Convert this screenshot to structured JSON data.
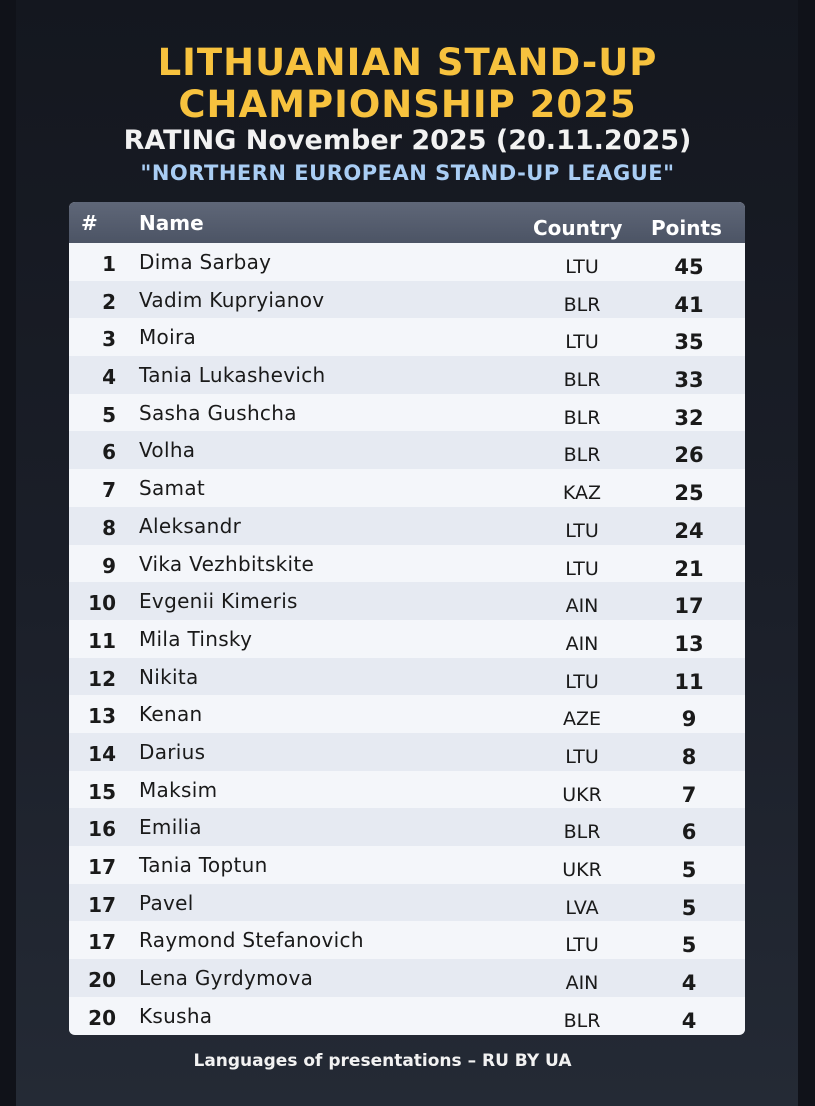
{
  "header": {
    "title_line1": "LITHUANIAN STAND-UP",
    "title_line2": "CHAMPIONSHIP 2025",
    "rating": "RATING November 2025 (20.11.2025)",
    "league": "\"NORTHERN EUROPEAN STAND-UP LEAGUE\""
  },
  "table": {
    "columns": {
      "rank": "#",
      "name": "Name",
      "country": "Country",
      "points": "Points"
    },
    "rows": [
      {
        "rank": "1",
        "name": "Dima Sarbay",
        "country": "LTU",
        "points": "45"
      },
      {
        "rank": "2",
        "name": "Vadim Kupryianov",
        "country": "BLR",
        "points": "41"
      },
      {
        "rank": "3",
        "name": "Moira",
        "country": "LTU",
        "points": "35"
      },
      {
        "rank": "4",
        "name": "Tania Lukashevich",
        "country": "BLR",
        "points": "33"
      },
      {
        "rank": "5",
        "name": "Sasha Gushcha",
        "country": "BLR",
        "points": "32"
      },
      {
        "rank": "6",
        "name": "Volha",
        "country": "BLR",
        "points": "26"
      },
      {
        "rank": "7",
        "name": "Samat",
        "country": "KAZ",
        "points": "25"
      },
      {
        "rank": "8",
        "name": "Aleksandr",
        "country": "LTU",
        "points": "24"
      },
      {
        "rank": "9",
        "name": "Vika Vezhbitskite",
        "country": "LTU",
        "points": "21"
      },
      {
        "rank": "10",
        "name": "Evgenii Kimeris",
        "country": "AIN",
        "points": "17"
      },
      {
        "rank": "11",
        "name": "Mila Tinsky",
        "country": "AIN",
        "points": "13"
      },
      {
        "rank": "12",
        "name": "Nikita",
        "country": "LTU",
        "points": "11"
      },
      {
        "rank": "13",
        "name": "Kenan",
        "country": "AZE",
        "points": "9"
      },
      {
        "rank": "14",
        "name": "Darius",
        "country": "LTU",
        "points": "8"
      },
      {
        "rank": "15",
        "name": "Maksim",
        "country": "UKR",
        "points": "7"
      },
      {
        "rank": "16",
        "name": "Emilia",
        "country": "BLR",
        "points": "6"
      },
      {
        "rank": "17",
        "name": "Tania Toptun",
        "country": "UKR",
        "points": "5"
      },
      {
        "rank": "17",
        "name": "Pavel",
        "country": "LVA",
        "points": "5"
      },
      {
        "rank": "17",
        "name": "Raymond Stefanovich",
        "country": "LTU",
        "points": "5"
      },
      {
        "rank": "20",
        "name": "Lena Gyrdymova",
        "country": "AIN",
        "points": "4"
      },
      {
        "rank": "20",
        "name": "Ksusha",
        "country": "BLR",
        "points": "4"
      }
    ]
  },
  "footer": {
    "languages": "Languages of presentations – RU BY UA"
  },
  "colors": {
    "title": "#f7c23e",
    "league": "#a9cdf4",
    "header_bg": "#545c6d",
    "row_odd": "#f4f6fa",
    "row_even": "#e6eaf2"
  }
}
